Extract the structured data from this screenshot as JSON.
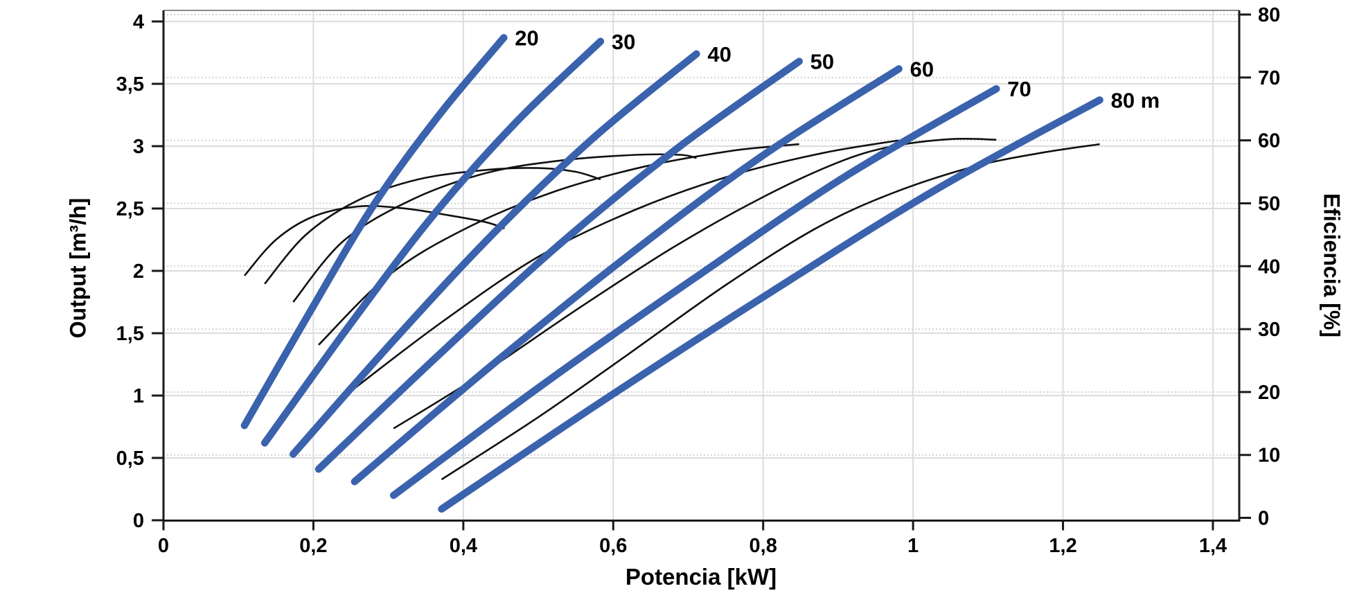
{
  "chart_data": {
    "type": "line",
    "title": "",
    "xlabel": "Potencia [kW]",
    "ylabel_left": "Output [m³/h]",
    "ylabel_right": "Eficiencia [%]",
    "x_axis": {
      "min": 0,
      "max": 1.4,
      "tick_values": [
        0,
        0.2,
        0.4,
        0.6,
        0.8,
        1,
        1.2,
        1.4
      ],
      "tick_labels": [
        "0",
        "0,2",
        "0,4",
        "0,6",
        "0,8",
        "1",
        "1,2",
        "1,4"
      ]
    },
    "y_axis_left": {
      "min": 0,
      "max": 4,
      "tick_values": [
        0,
        0.5,
        1,
        1.5,
        2,
        2.5,
        3,
        3.5,
        4
      ],
      "tick_labels": [
        "0",
        "0,5",
        "1",
        "1,5",
        "2",
        "2,5",
        "3",
        "3,5",
        "4"
      ]
    },
    "y_axis_right": {
      "min": 0,
      "max": 80,
      "tick_values": [
        0,
        10,
        20,
        30,
        40,
        50,
        60,
        70,
        80
      ],
      "tick_labels": [
        "0",
        "10",
        "20",
        "30",
        "40",
        "50",
        "60",
        "70",
        "80"
      ]
    },
    "grid": {
      "solid_vertical_at_kW": [
        0.2,
        0.4,
        0.6,
        0.8,
        1,
        1.2,
        1.4
      ],
      "solid_horizontal_at_m3h": [
        0.5,
        1,
        1.5,
        2,
        2.5,
        3,
        3.5,
        4
      ],
      "dotted_horizontal_at_pct": [
        10,
        20,
        30,
        40,
        50,
        60,
        70
      ],
      "grid_on": true
    },
    "legend_position": "curve-end-labels",
    "colors": {
      "pump_curve": "#3a62ad",
      "efficiency_curve": "#111111",
      "grid_solid": "#dcdcdc",
      "grid_dotted": "#d2d2d2",
      "axis": "#1a1a1a",
      "top_border": "#8a8a8a",
      "text": "#000000",
      "background": "#ffffff"
    },
    "pump_curves": [
      {
        "label": "20",
        "head_m": 20,
        "start_kW": 0.108,
        "start_m3h": 0.76,
        "end_kW": 0.454,
        "end_m3h": 3.87,
        "shape": [
          [
            0,
            0
          ],
          [
            0.25,
            0.29
          ],
          [
            0.5,
            0.57
          ],
          [
            0.75,
            0.8
          ],
          [
            1,
            1
          ]
        ]
      },
      {
        "label": "30",
        "head_m": 30,
        "start_kW": 0.135,
        "start_m3h": 0.62,
        "end_kW": 0.583,
        "end_m3h": 3.84,
        "shape": [
          [
            0,
            0
          ],
          [
            0.25,
            0.29
          ],
          [
            0.5,
            0.565
          ],
          [
            0.75,
            0.8
          ],
          [
            1,
            1
          ]
        ]
      },
      {
        "label": "40",
        "head_m": 40,
        "start_kW": 0.173,
        "start_m3h": 0.53,
        "end_kW": 0.711,
        "end_m3h": 3.74,
        "shape": [
          [
            0,
            0
          ],
          [
            0.25,
            0.285
          ],
          [
            0.5,
            0.555
          ],
          [
            0.75,
            0.795
          ],
          [
            1,
            1
          ]
        ]
      },
      {
        "label": "50",
        "head_m": 50,
        "start_kW": 0.207,
        "start_m3h": 0.41,
        "end_kW": 0.848,
        "end_m3h": 3.68,
        "shape": [
          [
            0,
            0
          ],
          [
            0.25,
            0.28
          ],
          [
            0.5,
            0.55
          ],
          [
            0.75,
            0.79
          ],
          [
            1,
            1
          ]
        ]
      },
      {
        "label": "60",
        "head_m": 60,
        "start_kW": 0.255,
        "start_m3h": 0.31,
        "end_kW": 0.981,
        "end_m3h": 3.62,
        "shape": [
          [
            0,
            0
          ],
          [
            0.25,
            0.28
          ],
          [
            0.5,
            0.545
          ],
          [
            0.75,
            0.79
          ],
          [
            1,
            1
          ]
        ]
      },
      {
        "label": "70",
        "head_m": 70,
        "start_kW": 0.307,
        "start_m3h": 0.2,
        "end_kW": 1.111,
        "end_m3h": 3.46,
        "shape": [
          [
            0,
            0
          ],
          [
            0.25,
            0.275
          ],
          [
            0.5,
            0.535
          ],
          [
            0.75,
            0.785
          ],
          [
            1,
            1
          ]
        ]
      },
      {
        "label": "80 m",
        "head_m": 80,
        "start_kW": 0.371,
        "start_m3h": 0.09,
        "end_kW": 1.249,
        "end_m3h": 3.37,
        "shape": [
          [
            0,
            0
          ],
          [
            0.25,
            0.27
          ],
          [
            0.5,
            0.53
          ],
          [
            0.75,
            0.78
          ],
          [
            1,
            1
          ]
        ]
      }
    ],
    "efficiency_curves": [
      {
        "head_m": 20,
        "points": [
          [
            0.108,
            38.5
          ],
          [
            0.15,
            44.2
          ],
          [
            0.2,
            47.9
          ],
          [
            0.26,
            49.5
          ],
          [
            0.32,
            49.2
          ],
          [
            0.38,
            48.1
          ],
          [
            0.43,
            47.0
          ],
          [
            0.455,
            46.0
          ]
        ]
      },
      {
        "head_m": 30,
        "points": [
          [
            0.135,
            37.2
          ],
          [
            0.19,
            45.0
          ],
          [
            0.26,
            50.5
          ],
          [
            0.34,
            53.8
          ],
          [
            0.43,
            55.3
          ],
          [
            0.5,
            55.6
          ],
          [
            0.55,
            55.0
          ],
          [
            0.583,
            53.8
          ]
        ]
      },
      {
        "head_m": 40,
        "points": [
          [
            0.173,
            34.3
          ],
          [
            0.24,
            44.0
          ],
          [
            0.33,
            50.5
          ],
          [
            0.43,
            54.8
          ],
          [
            0.53,
            56.8
          ],
          [
            0.63,
            57.7
          ],
          [
            0.69,
            57.7
          ],
          [
            0.711,
            57.2
          ]
        ]
      },
      {
        "head_m": 50,
        "points": [
          [
            0.207,
            27.5
          ],
          [
            0.3,
            38.5
          ],
          [
            0.4,
            45.8
          ],
          [
            0.52,
            51.8
          ],
          [
            0.64,
            55.8
          ],
          [
            0.75,
            58.2
          ],
          [
            0.81,
            59.0
          ],
          [
            0.848,
            59.4
          ]
        ]
      },
      {
        "head_m": 60,
        "points": [
          [
            0.255,
            20.6
          ],
          [
            0.37,
            31.0
          ],
          [
            0.5,
            41.5
          ],
          [
            0.63,
            49.0
          ],
          [
            0.76,
            54.5
          ],
          [
            0.88,
            58.0
          ],
          [
            0.981,
            60.0
          ]
        ]
      },
      {
        "head_m": 70,
        "points": [
          [
            0.307,
            14.2
          ],
          [
            0.42,
            22.5
          ],
          [
            0.55,
            33.0
          ],
          [
            0.68,
            43.0
          ],
          [
            0.8,
            51.0
          ],
          [
            0.9,
            56.5
          ],
          [
            0.97,
            59.0
          ],
          [
            1.05,
            60.2
          ],
          [
            1.111,
            60.1
          ]
        ]
      },
      {
        "head_m": 80,
        "points": [
          [
            0.371,
            6.1
          ],
          [
            0.5,
            16.0
          ],
          [
            0.62,
            26.0
          ],
          [
            0.75,
            37.0
          ],
          [
            0.87,
            46.0
          ],
          [
            0.97,
            51.5
          ],
          [
            1.08,
            55.8
          ],
          [
            1.17,
            58.0
          ],
          [
            1.249,
            59.4
          ]
        ]
      }
    ]
  }
}
